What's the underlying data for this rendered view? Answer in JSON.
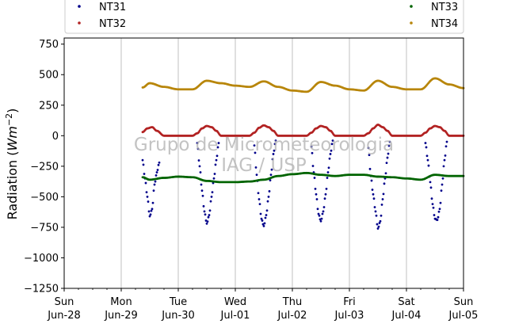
{
  "watermark": {
    "line1": "Grupo de Micrometeorologia",
    "line2": "IAG / USP"
  },
  "chart_data": {
    "type": "scatter",
    "title": "",
    "xlabel": "",
    "ylabel": "Radiation",
    "ylabel_parts": {
      "main": "Radiation (",
      "w": "W",
      "m": "m",
      "exp": "−2",
      "close": ")"
    },
    "xlim": [
      "2020-06-28",
      "2020-07-05"
    ],
    "ylim": [
      -1250,
      800
    ],
    "yticks": [
      750,
      500,
      250,
      0,
      -250,
      -500,
      -750,
      -1000,
      -1250
    ],
    "ytick_labels": [
      "750",
      "500",
      "250",
      "0",
      "−250",
      "−500",
      "−750",
      "−1000",
      "−1250"
    ],
    "xticks": [
      {
        "date": "2020-06-28",
        "day": "Sun",
        "date_label": "Jun-28"
      },
      {
        "date": "2020-06-29",
        "day": "Mon",
        "date_label": "Jun-29"
      },
      {
        "date": "2020-06-30",
        "day": "Tue",
        "date_label": "Jun-30"
      },
      {
        "date": "2020-07-01",
        "day": "Wed",
        "date_label": "Jul-01"
      },
      {
        "date": "2020-07-02",
        "day": "Thu",
        "date_label": "Jul-02"
      },
      {
        "date": "2020-07-03",
        "day": "Fri",
        "date_label": "Jul-03"
      },
      {
        "date": "2020-07-04",
        "day": "Sat",
        "date_label": "Jul-04"
      },
      {
        "date": "2020-07-05",
        "day": "Sun",
        "date_label": "Jul-05"
      }
    ],
    "grid": "vertical",
    "legend": {
      "placement": "top",
      "columns": 2
    },
    "series": [
      {
        "name": "NT31",
        "color": "#00008b",
        "x": [
          "2020-06-29 09:00",
          "2020-06-29 10:00",
          "2020-06-29 11:00",
          "2020-06-29 12:00",
          "2020-06-29 13:00",
          "2020-06-29 14:00",
          "2020-06-29 15:00",
          "2020-06-29 16:00",
          "2020-06-30 08:00",
          "2020-06-30 09:00",
          "2020-06-30 10:00",
          "2020-06-30 11:00",
          "2020-06-30 12:00",
          "2020-06-30 13:00",
          "2020-06-30 14:00",
          "2020-06-30 15:00",
          "2020-06-30 16:00",
          "2020-06-30 17:00",
          "2020-07-01 08:00",
          "2020-07-01 09:00",
          "2020-07-01 10:00",
          "2020-07-01 11:00",
          "2020-07-01 12:00",
          "2020-07-01 13:00",
          "2020-07-01 14:00",
          "2020-07-01 15:00",
          "2020-07-01 16:00",
          "2020-07-01 17:00",
          "2020-07-02 08:00",
          "2020-07-02 09:00",
          "2020-07-02 10:00",
          "2020-07-02 11:00",
          "2020-07-02 12:00",
          "2020-07-02 13:00",
          "2020-07-02 14:00",
          "2020-07-02 15:00",
          "2020-07-02 16:00",
          "2020-07-02 17:00",
          "2020-07-03 08:00",
          "2020-07-03 09:00",
          "2020-07-03 10:00",
          "2020-07-03 11:00",
          "2020-07-03 12:00",
          "2020-07-03 13:00",
          "2020-07-03 14:00",
          "2020-07-03 15:00",
          "2020-07-03 16:00",
          "2020-07-03 17:00",
          "2020-07-04 08:00",
          "2020-07-04 09:00",
          "2020-07-04 10:00",
          "2020-07-04 11:00",
          "2020-07-04 12:00",
          "2020-07-04 13:00",
          "2020-07-04 14:00",
          "2020-07-04 15:00",
          "2020-07-04 16:00",
          "2020-07-04 17:00"
        ],
        "y": [
          -200,
          -350,
          -500,
          -660,
          -600,
          -400,
          -300,
          -220,
          -60,
          -250,
          -450,
          -620,
          -720,
          -650,
          -500,
          -350,
          -200,
          -60,
          -80,
          -320,
          -520,
          -680,
          -740,
          -650,
          -500,
          -320,
          -150,
          -40,
          -90,
          -300,
          -480,
          -640,
          -700,
          -620,
          -480,
          -300,
          -150,
          -40,
          -100,
          -330,
          -480,
          -620,
          -760,
          -700,
          -520,
          -350,
          -180,
          -50,
          -60,
          -200,
          -380,
          -560,
          -680,
          -690,
          -600,
          -400,
          -200,
          -50
        ]
      },
      {
        "name": "NT32",
        "color": "#b22222",
        "x": [
          "2020-06-29 09:00",
          "2020-06-29 11:00",
          "2020-06-29 13:00",
          "2020-06-29 15:00",
          "2020-06-29 18:00",
          "2020-06-30 00:00",
          "2020-06-30 06:00",
          "2020-06-30 08:00",
          "2020-06-30 10:00",
          "2020-06-30 12:00",
          "2020-06-30 14:00",
          "2020-06-30 16:00",
          "2020-06-30 18:00",
          "2020-07-01 00:00",
          "2020-07-01 06:00",
          "2020-07-01 08:00",
          "2020-07-01 10:00",
          "2020-07-01 12:00",
          "2020-07-01 14:00",
          "2020-07-01 16:00",
          "2020-07-01 18:00",
          "2020-07-02 00:00",
          "2020-07-02 06:00",
          "2020-07-02 08:00",
          "2020-07-02 10:00",
          "2020-07-02 12:00",
          "2020-07-02 14:00",
          "2020-07-02 16:00",
          "2020-07-02 18:00",
          "2020-07-03 00:00",
          "2020-07-03 06:00",
          "2020-07-03 08:00",
          "2020-07-03 10:00",
          "2020-07-03 12:00",
          "2020-07-03 14:00",
          "2020-07-03 16:00",
          "2020-07-03 18:00",
          "2020-07-04 00:00",
          "2020-07-04 06:00",
          "2020-07-04 08:00",
          "2020-07-04 10:00",
          "2020-07-04 12:00",
          "2020-07-04 14:00",
          "2020-07-04 16:00",
          "2020-07-04 18:00",
          "2020-07-05 00:00"
        ],
        "y": [
          30,
          60,
          70,
          40,
          0,
          0,
          0,
          20,
          60,
          80,
          70,
          40,
          0,
          0,
          0,
          25,
          65,
          85,
          70,
          40,
          0,
          0,
          0,
          25,
          60,
          80,
          70,
          40,
          0,
          0,
          0,
          20,
          60,
          90,
          70,
          40,
          0,
          0,
          0,
          25,
          60,
          80,
          70,
          40,
          0,
          0
        ]
      },
      {
        "name": "NT33",
        "color": "#006400",
        "x": [
          "2020-06-29 09:00",
          "2020-06-29 12:00",
          "2020-06-29 18:00",
          "2020-06-30 00:00",
          "2020-06-30 06:00",
          "2020-06-30 12:00",
          "2020-06-30 18:00",
          "2020-07-01 00:00",
          "2020-07-01 06:00",
          "2020-07-01 12:00",
          "2020-07-01 18:00",
          "2020-07-02 00:00",
          "2020-07-02 06:00",
          "2020-07-02 12:00",
          "2020-07-02 18:00",
          "2020-07-03 00:00",
          "2020-07-03 06:00",
          "2020-07-03 12:00",
          "2020-07-03 18:00",
          "2020-07-04 00:00",
          "2020-07-04 06:00",
          "2020-07-04 12:00",
          "2020-07-04 18:00",
          "2020-07-05 00:00"
        ],
        "y": [
          -340,
          -360,
          -345,
          -335,
          -340,
          -370,
          -380,
          -380,
          -375,
          -360,
          -330,
          -315,
          -305,
          -320,
          -330,
          -320,
          -320,
          -335,
          -340,
          -350,
          -360,
          -320,
          -330,
          -330
        ]
      },
      {
        "name": "NT34",
        "color": "#b8860b",
        "x": [
          "2020-06-29 09:00",
          "2020-06-29 12:00",
          "2020-06-29 18:00",
          "2020-06-30 00:00",
          "2020-06-30 06:00",
          "2020-06-30 12:00",
          "2020-06-30 18:00",
          "2020-07-01 00:00",
          "2020-07-01 06:00",
          "2020-07-01 12:00",
          "2020-07-01 18:00",
          "2020-07-02 00:00",
          "2020-07-02 06:00",
          "2020-07-02 12:00",
          "2020-07-02 18:00",
          "2020-07-03 00:00",
          "2020-07-03 06:00",
          "2020-07-03 12:00",
          "2020-07-03 18:00",
          "2020-07-04 00:00",
          "2020-07-04 06:00",
          "2020-07-04 12:00",
          "2020-07-04 18:00",
          "2020-07-05 00:00"
        ],
        "y": [
          395,
          430,
          400,
          380,
          380,
          450,
          430,
          410,
          400,
          445,
          400,
          370,
          360,
          440,
          410,
          380,
          370,
          450,
          400,
          380,
          380,
          470,
          420,
          390
        ]
      }
    ]
  }
}
